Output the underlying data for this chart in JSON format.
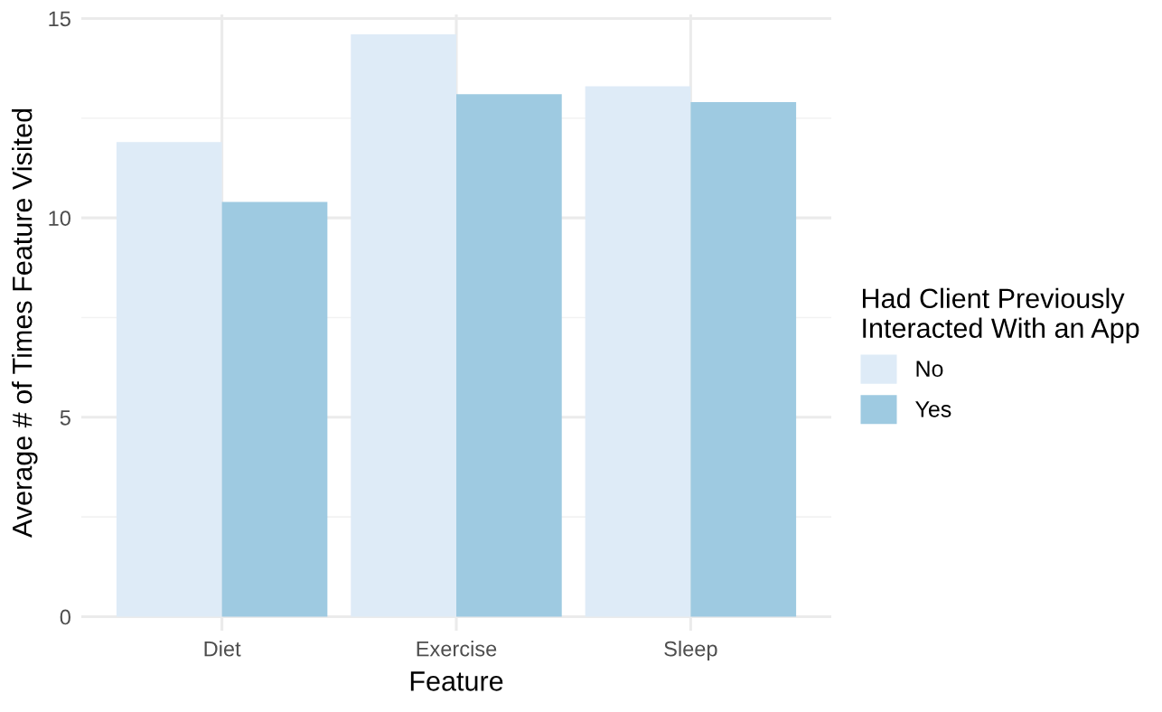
{
  "chart_data": {
    "type": "bar",
    "xlabel": "Feature",
    "ylabel": "Average # of Times Feature Visited",
    "legend_title": "Had Client Previously\nInteracted With an App",
    "categories": [
      "Diet",
      "Exercise",
      "Sleep"
    ],
    "series": [
      {
        "name": "No",
        "color": "#deebf7",
        "values": [
          11.9,
          14.6,
          13.3
        ]
      },
      {
        "name": "Yes",
        "color": "#9ecae1",
        "values": [
          10.4,
          13.1,
          12.9
        ]
      }
    ],
    "ylim": [
      -0.35,
      15.1
    ],
    "yticks": [
      0,
      5,
      10,
      15
    ],
    "grid": true,
    "legend": "right"
  }
}
